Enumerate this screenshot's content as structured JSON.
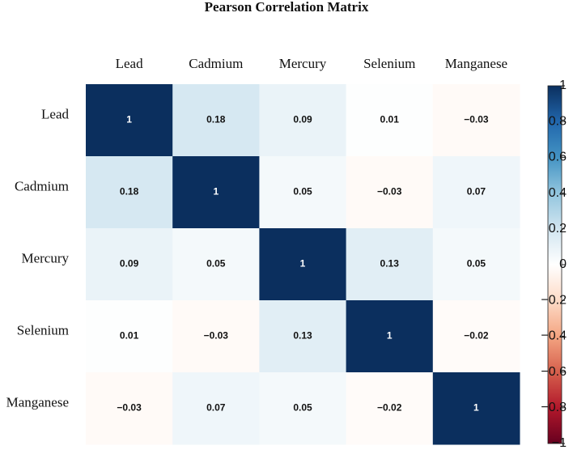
{
  "chart_data": {
    "type": "heatmap",
    "title": "Pearson Correlation Matrix",
    "x_categories": [
      "Lead",
      "Cadmium",
      "Mercury",
      "Selenium",
      "Manganese"
    ],
    "y_categories": [
      "Lead",
      "Cadmium",
      "Mercury",
      "Selenium",
      "Manganese"
    ],
    "values": [
      [
        1,
        0.18,
        0.09,
        0.01,
        -0.03
      ],
      [
        0.18,
        1,
        0.05,
        -0.03,
        0.07
      ],
      [
        0.09,
        0.05,
        1,
        0.13,
        0.05
      ],
      [
        0.01,
        -0.03,
        0.13,
        1,
        -0.02
      ],
      [
        -0.03,
        0.07,
        0.05,
        -0.02,
        1
      ]
    ],
    "value_labels": [
      [
        "1",
        "0.18",
        "0.09",
        "0.01",
        "−0.03"
      ],
      [
        "0.18",
        "1",
        "0.05",
        "−0.03",
        "0.07"
      ],
      [
        "0.09",
        "0.05",
        "1",
        "0.13",
        "0.05"
      ],
      [
        "0.01",
        "−0.03",
        "0.13",
        "1",
        "−0.02"
      ],
      [
        "−0.03",
        "0.07",
        "0.05",
        "−0.02",
        "1"
      ]
    ],
    "zlim": [
      -1,
      1
    ],
    "zticks": [
      1,
      0.8,
      0.6,
      0.4,
      0.2,
      0,
      {
        "value": -0.2,
        "label": "−0.2"
      },
      {
        "value": -0.4,
        "label": "−0.4"
      },
      {
        "value": -0.6,
        "label": "−0.6"
      },
      {
        "value": -0.8,
        "label": "−0.8"
      },
      {
        "value": -1,
        "label": "−1"
      }
    ],
    "colors": [
      "#67001f",
      "#b2182b",
      "#d6604d",
      "#f4a582",
      "#fddbc7",
      "#ffffff",
      "#d1e5f0",
      "#92c5de",
      "#4393c3",
      "#2166ac",
      "#0b2f5e"
    ]
  }
}
